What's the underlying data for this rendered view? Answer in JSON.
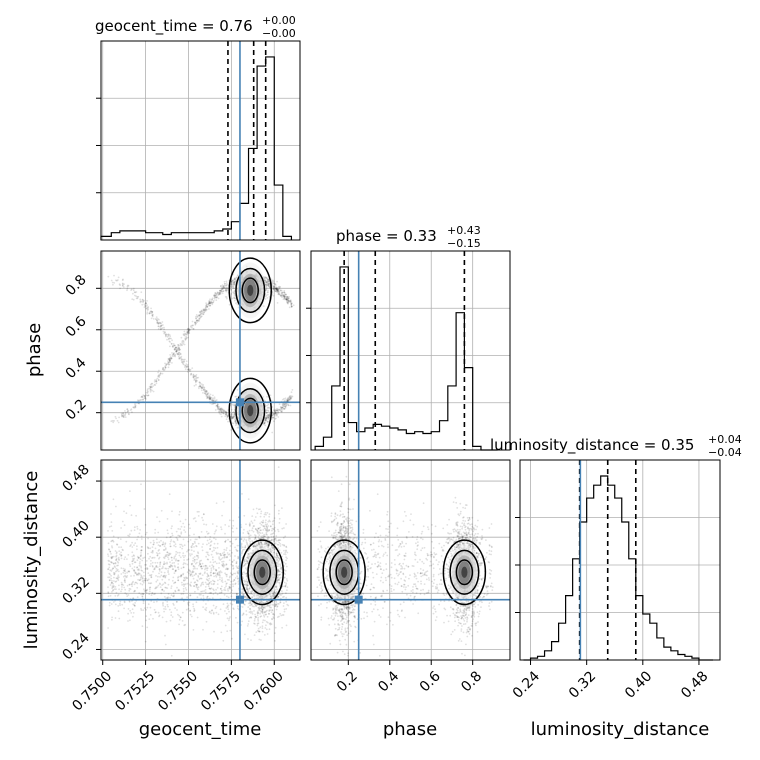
{
  "chart_data": {
    "type": "corner",
    "parameters": [
      "geocent_time",
      "phase",
      "luminosity_distance"
    ],
    "truth": {
      "geocent_time": 0.758,
      "phase": 0.25,
      "luminosity_distance": 0.311
    },
    "truth_color": "#4682b4",
    "titles": [
      {
        "param": "geocent_time",
        "text": "geocent_time = 0.76",
        "sup": "+0.00",
        "sub": "−0.00"
      },
      {
        "param": "phase",
        "text": "phase = 0.33",
        "sup": "+0.43",
        "sub": "−0.15"
      },
      {
        "param": "luminosity_distance",
        "text": "luminosity_distance = 0.35",
        "sup": "+0.04",
        "sub": "−0.04"
      }
    ],
    "axes": {
      "geocent_time": {
        "lim": [
          0.7499,
          0.7615
        ],
        "ticks": [
          0.75,
          0.7525,
          0.755,
          0.7575,
          0.76
        ],
        "ticklabels": [
          "0.7500",
          "0.7525",
          "0.7550",
          "0.7575",
          "0.7600"
        ]
      },
      "phase": {
        "lim": [
          0.02,
          0.98
        ],
        "ticks": [
          0.2,
          0.4,
          0.6,
          0.8
        ],
        "ticklabels": [
          "0.2",
          "0.4",
          "0.6",
          "0.8"
        ]
      },
      "luminosity_distance": {
        "lim": [
          0.225,
          0.51
        ],
        "ticks": [
          0.24,
          0.32,
          0.4,
          0.48
        ],
        "ticklabels": [
          "0.24",
          "0.32",
          "0.40",
          "0.48"
        ]
      }
    },
    "histograms": {
      "geocent_time": {
        "edges": [
          0.7499,
          0.7505,
          0.751,
          0.7515,
          0.752,
          0.7525,
          0.753,
          0.7535,
          0.754,
          0.7545,
          0.755,
          0.7555,
          0.756,
          0.7565,
          0.757,
          0.7575,
          0.758,
          0.7585,
          0.759,
          0.7595,
          0.76,
          0.7605,
          0.761
        ],
        "counts": [
          0.02,
          0.04,
          0.05,
          0.05,
          0.05,
          0.04,
          0.04,
          0.03,
          0.04,
          0.04,
          0.04,
          0.04,
          0.04,
          0.05,
          0.06,
          0.1,
          0.2,
          0.5,
          0.95,
          1.0,
          0.3,
          0.02
        ],
        "quantiles": [
          0.7573,
          0.7588,
          0.7595
        ]
      },
      "phase": {
        "edges": [
          0.04,
          0.08,
          0.12,
          0.16,
          0.2,
          0.24,
          0.28,
          0.32,
          0.36,
          0.4,
          0.44,
          0.48,
          0.52,
          0.56,
          0.6,
          0.64,
          0.68,
          0.72,
          0.76,
          0.8,
          0.84,
          0.88,
          0.92
        ],
        "counts": [
          0.02,
          0.07,
          0.35,
          1.0,
          0.15,
          0.1,
          0.12,
          0.14,
          0.13,
          0.12,
          0.11,
          0.09,
          0.1,
          0.09,
          0.1,
          0.16,
          0.35,
          0.75,
          0.45,
          0.02,
          0.0,
          0.0
        ],
        "quantiles": [
          0.18,
          0.33,
          0.76
        ]
      },
      "luminosity_distance": {
        "edges": [
          0.23,
          0.24,
          0.25,
          0.26,
          0.27,
          0.28,
          0.29,
          0.3,
          0.31,
          0.32,
          0.33,
          0.34,
          0.35,
          0.36,
          0.37,
          0.38,
          0.39,
          0.4,
          0.41,
          0.42,
          0.43,
          0.44,
          0.45,
          0.46,
          0.47,
          0.48,
          0.49,
          0.5
        ],
        "counts": [
          0.0,
          0.01,
          0.02,
          0.05,
          0.1,
          0.2,
          0.35,
          0.55,
          0.75,
          0.88,
          0.95,
          1.0,
          0.95,
          0.88,
          0.75,
          0.55,
          0.35,
          0.25,
          0.2,
          0.12,
          0.07,
          0.05,
          0.03,
          0.02,
          0.01,
          0.0,
          0.0
        ],
        "quantiles": [
          0.31,
          0.35,
          0.39
        ]
      }
    },
    "joint": [
      {
        "x": "geocent_time",
        "y": "phase",
        "modes": [
          [
            0.7586,
            0.79
          ],
          [
            0.7586,
            0.21
          ]
        ],
        "arc": "phase-time"
      },
      {
        "x": "geocent_time",
        "y": "luminosity_distance",
        "modes": [
          [
            0.7593,
            0.35
          ]
        ],
        "arc": "tail"
      },
      {
        "x": "phase",
        "y": "luminosity_distance",
        "modes": [
          [
            0.18,
            0.35
          ],
          [
            0.76,
            0.35
          ]
        ],
        "arc": "bridge"
      }
    ]
  }
}
